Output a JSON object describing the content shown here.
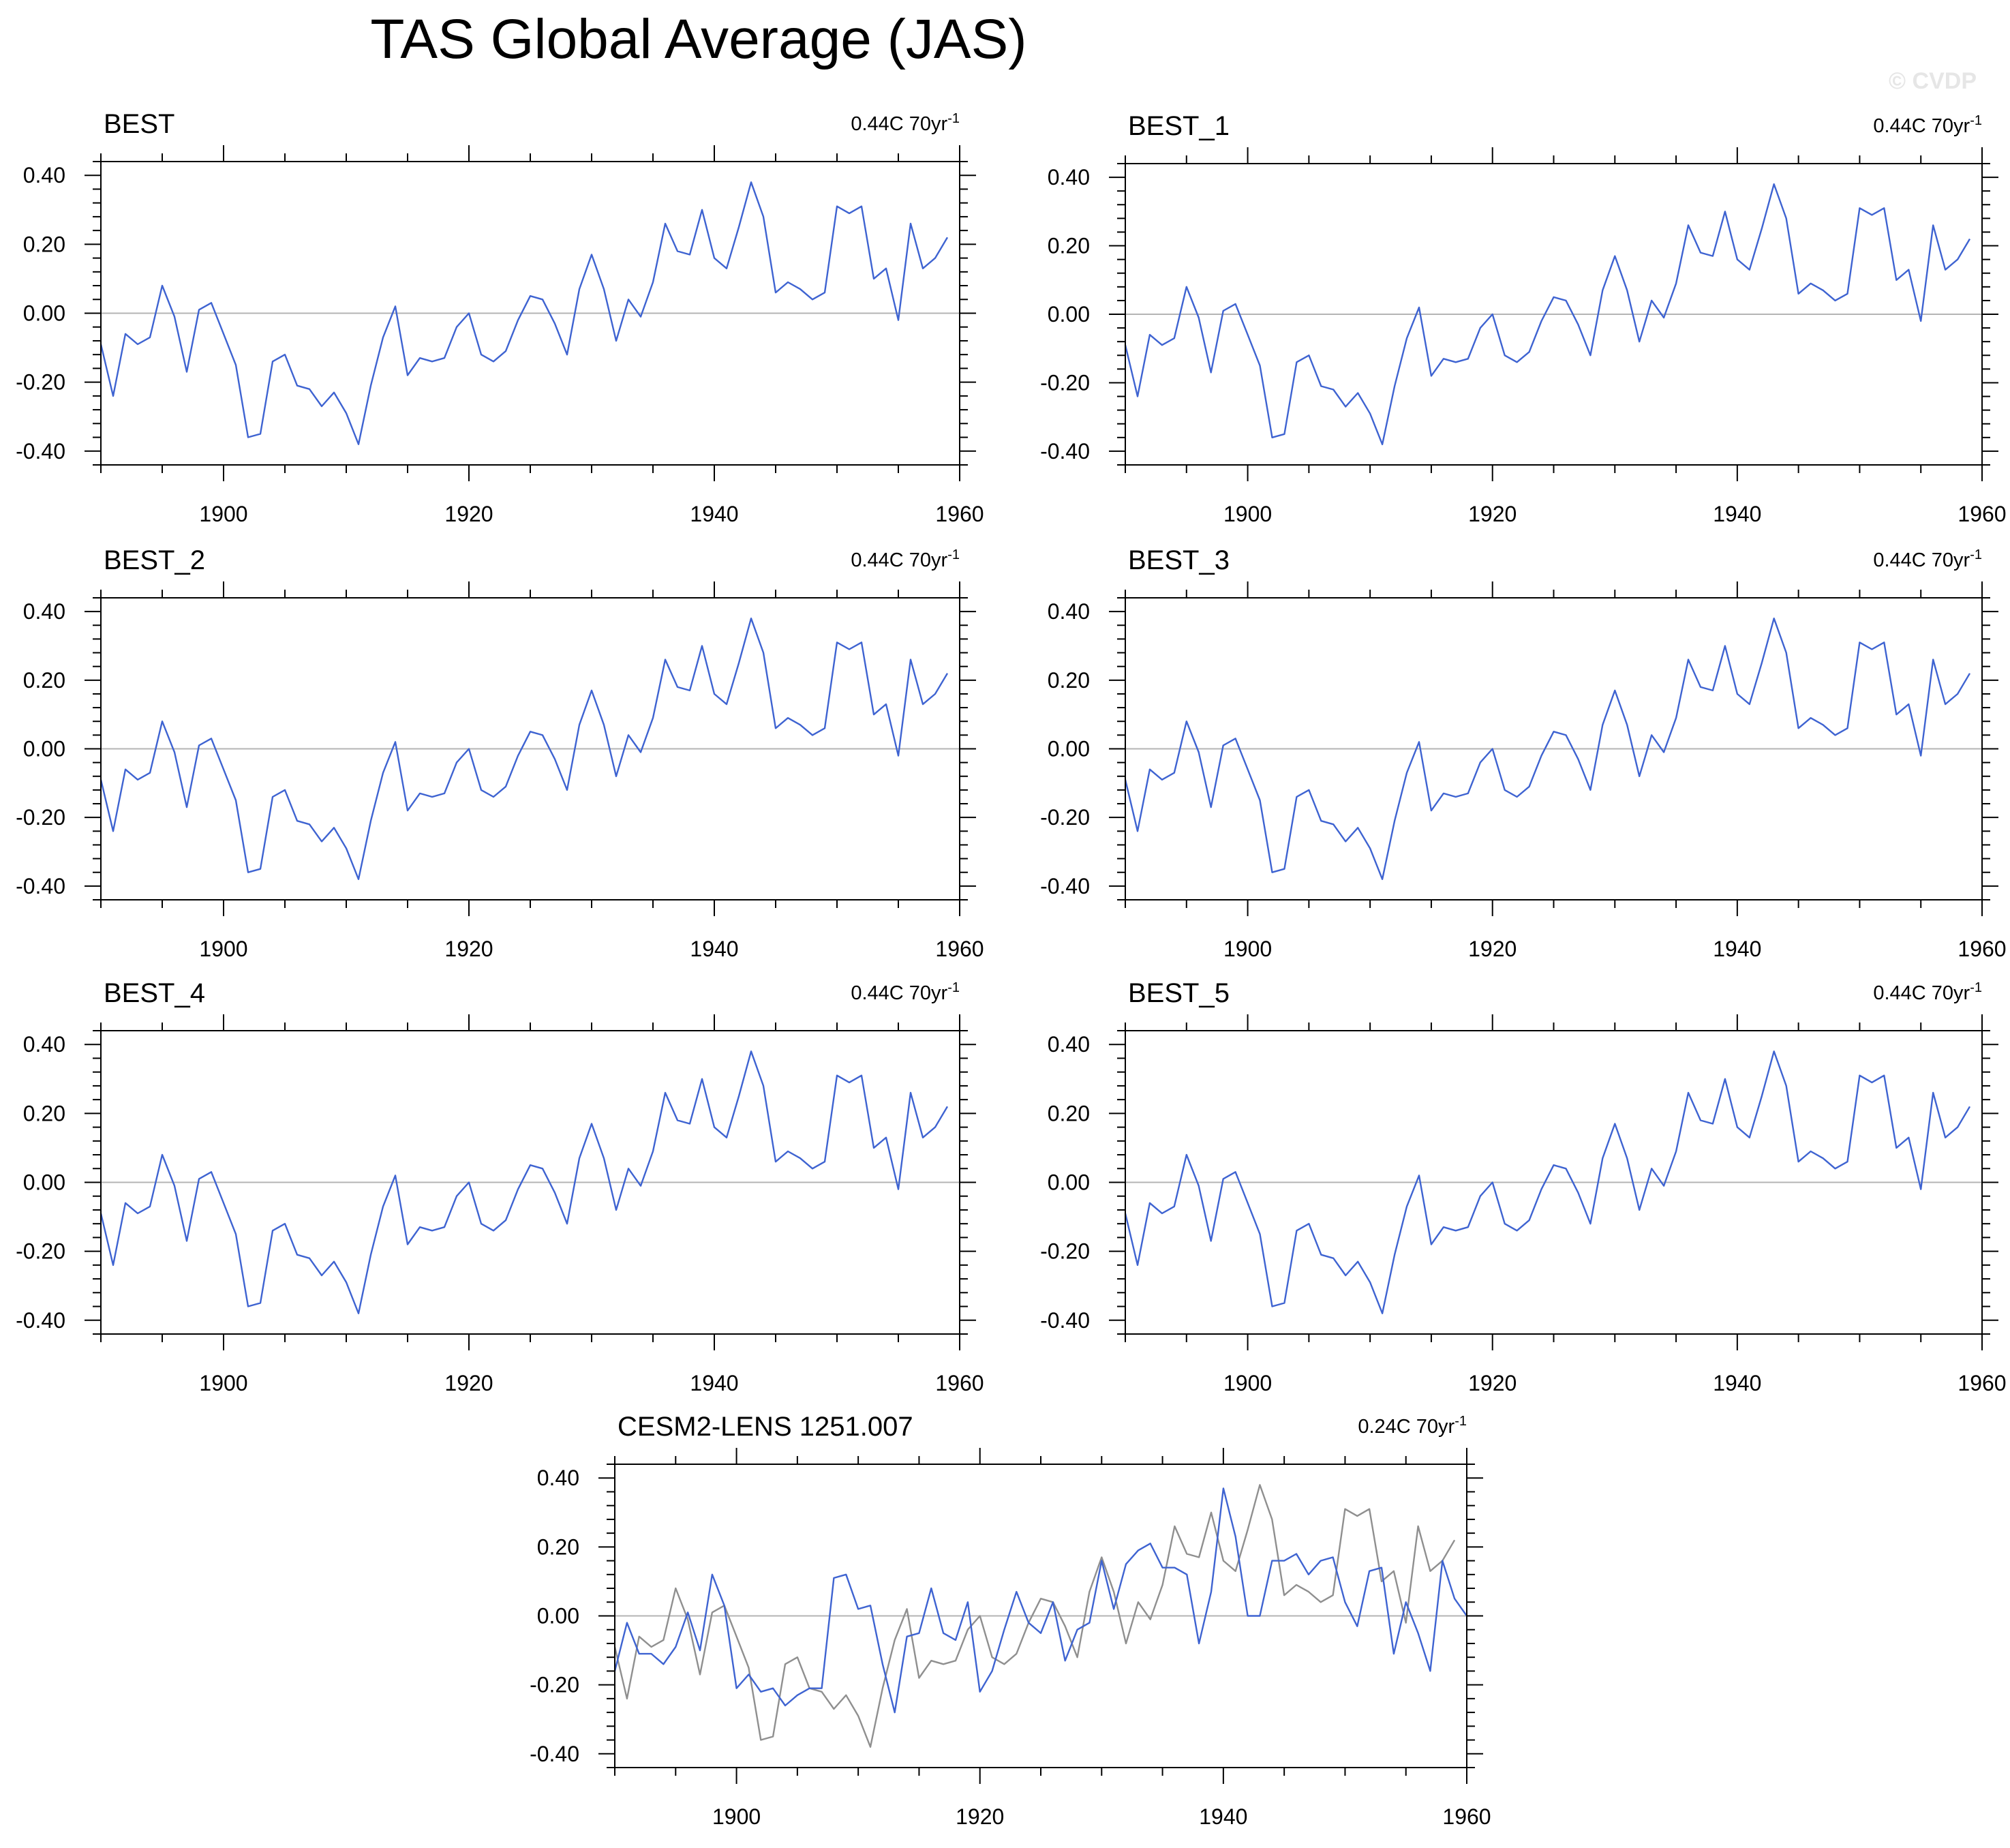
{
  "title": "TAS Global Average (JAS)",
  "watermark": "© CVDP",
  "axes": {
    "xlim": [
      1890,
      1960
    ],
    "ylim": [
      -0.44,
      0.44
    ],
    "xticks": [
      1900,
      1920,
      1940,
      1960
    ],
    "xtick_labels": [
      "1900",
      "1920",
      "1940",
      "1960"
    ],
    "yticks": [
      0.4,
      0.2,
      0.0,
      -0.2,
      -0.4
    ],
    "ytick_labels": [
      "0.40",
      "0.20",
      "0.00",
      "-0.20",
      "-0.40"
    ],
    "zero_line": true
  },
  "colors": {
    "obs": "#3e63d1",
    "model": "#3e63d1",
    "obs_overlay": "#8f8f8f",
    "zero_line": "#b4b4b4"
  },
  "chart_data": [
    {
      "type": "line",
      "title": "BEST",
      "trend_value": "0.44C 70yr",
      "trend_exp": "-1",
      "series": [
        {
          "values": [
            -0.09,
            -0.24,
            -0.06,
            -0.09,
            -0.07,
            0.08,
            -0.01,
            -0.17,
            0.01,
            0.03,
            -0.06,
            -0.15,
            -0.36,
            -0.35,
            -0.14,
            -0.12,
            -0.21,
            -0.22,
            -0.27,
            -0.23,
            -0.29,
            -0.38,
            -0.21,
            -0.07,
            0.02,
            -0.18,
            -0.13,
            -0.14,
            -0.13,
            -0.04,
            0.0,
            -0.12,
            -0.14,
            -0.11,
            -0.02,
            0.05,
            0.04,
            -0.03,
            -0.12,
            0.07,
            0.17,
            0.07,
            -0.08,
            0.04,
            -0.01,
            0.09,
            0.26,
            0.18,
            0.17,
            0.3,
            0.16,
            0.13,
            0.25,
            0.38,
            0.28,
            0.06,
            0.09,
            0.07,
            0.04,
            0.06,
            0.31,
            0.29,
            0.31,
            0.1,
            0.13,
            -0.02,
            0.26,
            0.13,
            0.16,
            0.22
          ]
        }
      ]
    },
    {
      "type": "line",
      "title": "BEST_1",
      "trend_value": "0.44C 70yr",
      "trend_exp": "-1",
      "series": [
        {
          "values": [
            -0.09,
            -0.24,
            -0.06,
            -0.09,
            -0.07,
            0.08,
            -0.01,
            -0.17,
            0.01,
            0.03,
            -0.06,
            -0.15,
            -0.36,
            -0.35,
            -0.14,
            -0.12,
            -0.21,
            -0.22,
            -0.27,
            -0.23,
            -0.29,
            -0.38,
            -0.21,
            -0.07,
            0.02,
            -0.18,
            -0.13,
            -0.14,
            -0.13,
            -0.04,
            0.0,
            -0.12,
            -0.14,
            -0.11,
            -0.02,
            0.05,
            0.04,
            -0.03,
            -0.12,
            0.07,
            0.17,
            0.07,
            -0.08,
            0.04,
            -0.01,
            0.09,
            0.26,
            0.18,
            0.17,
            0.3,
            0.16,
            0.13,
            0.25,
            0.38,
            0.28,
            0.06,
            0.09,
            0.07,
            0.04,
            0.06,
            0.31,
            0.29,
            0.31,
            0.1,
            0.13,
            -0.02,
            0.26,
            0.13,
            0.16,
            0.22
          ]
        }
      ]
    },
    {
      "type": "line",
      "title": "BEST_2",
      "trend_value": "0.44C 70yr",
      "trend_exp": "-1",
      "series": [
        {
          "values": [
            -0.09,
            -0.24,
            -0.06,
            -0.09,
            -0.07,
            0.08,
            -0.01,
            -0.17,
            0.01,
            0.03,
            -0.06,
            -0.15,
            -0.36,
            -0.35,
            -0.14,
            -0.12,
            -0.21,
            -0.22,
            -0.27,
            -0.23,
            -0.29,
            -0.38,
            -0.21,
            -0.07,
            0.02,
            -0.18,
            -0.13,
            -0.14,
            -0.13,
            -0.04,
            0.0,
            -0.12,
            -0.14,
            -0.11,
            -0.02,
            0.05,
            0.04,
            -0.03,
            -0.12,
            0.07,
            0.17,
            0.07,
            -0.08,
            0.04,
            -0.01,
            0.09,
            0.26,
            0.18,
            0.17,
            0.3,
            0.16,
            0.13,
            0.25,
            0.38,
            0.28,
            0.06,
            0.09,
            0.07,
            0.04,
            0.06,
            0.31,
            0.29,
            0.31,
            0.1,
            0.13,
            -0.02,
            0.26,
            0.13,
            0.16,
            0.22
          ]
        }
      ]
    },
    {
      "type": "line",
      "title": "BEST_3",
      "trend_value": "0.44C 70yr",
      "trend_exp": "-1",
      "series": [
        {
          "values": [
            -0.09,
            -0.24,
            -0.06,
            -0.09,
            -0.07,
            0.08,
            -0.01,
            -0.17,
            0.01,
            0.03,
            -0.06,
            -0.15,
            -0.36,
            -0.35,
            -0.14,
            -0.12,
            -0.21,
            -0.22,
            -0.27,
            -0.23,
            -0.29,
            -0.38,
            -0.21,
            -0.07,
            0.02,
            -0.18,
            -0.13,
            -0.14,
            -0.13,
            -0.04,
            0.0,
            -0.12,
            -0.14,
            -0.11,
            -0.02,
            0.05,
            0.04,
            -0.03,
            -0.12,
            0.07,
            0.17,
            0.07,
            -0.08,
            0.04,
            -0.01,
            0.09,
            0.26,
            0.18,
            0.17,
            0.3,
            0.16,
            0.13,
            0.25,
            0.38,
            0.28,
            0.06,
            0.09,
            0.07,
            0.04,
            0.06,
            0.31,
            0.29,
            0.31,
            0.1,
            0.13,
            -0.02,
            0.26,
            0.13,
            0.16,
            0.22
          ]
        }
      ]
    },
    {
      "type": "line",
      "title": "BEST_4",
      "trend_value": "0.44C 70yr",
      "trend_exp": "-1",
      "series": [
        {
          "values": [
            -0.09,
            -0.24,
            -0.06,
            -0.09,
            -0.07,
            0.08,
            -0.01,
            -0.17,
            0.01,
            0.03,
            -0.06,
            -0.15,
            -0.36,
            -0.35,
            -0.14,
            -0.12,
            -0.21,
            -0.22,
            -0.27,
            -0.23,
            -0.29,
            -0.38,
            -0.21,
            -0.07,
            0.02,
            -0.18,
            -0.13,
            -0.14,
            -0.13,
            -0.04,
            0.0,
            -0.12,
            -0.14,
            -0.11,
            -0.02,
            0.05,
            0.04,
            -0.03,
            -0.12,
            0.07,
            0.17,
            0.07,
            -0.08,
            0.04,
            -0.01,
            0.09,
            0.26,
            0.18,
            0.17,
            0.3,
            0.16,
            0.13,
            0.25,
            0.38,
            0.28,
            0.06,
            0.09,
            0.07,
            0.04,
            0.06,
            0.31,
            0.29,
            0.31,
            0.1,
            0.13,
            -0.02,
            0.26,
            0.13,
            0.16,
            0.22
          ]
        }
      ]
    },
    {
      "type": "line",
      "title": "BEST_5",
      "trend_value": "0.44C 70yr",
      "trend_exp": "-1",
      "series": [
        {
          "values": [
            -0.09,
            -0.24,
            -0.06,
            -0.09,
            -0.07,
            0.08,
            -0.01,
            -0.17,
            0.01,
            0.03,
            -0.06,
            -0.15,
            -0.36,
            -0.35,
            -0.14,
            -0.12,
            -0.21,
            -0.22,
            -0.27,
            -0.23,
            -0.29,
            -0.38,
            -0.21,
            -0.07,
            0.02,
            -0.18,
            -0.13,
            -0.14,
            -0.13,
            -0.04,
            0.0,
            -0.12,
            -0.14,
            -0.11,
            -0.02,
            0.05,
            0.04,
            -0.03,
            -0.12,
            0.07,
            0.17,
            0.07,
            -0.08,
            0.04,
            -0.01,
            0.09,
            0.26,
            0.18,
            0.17,
            0.3,
            0.16,
            0.13,
            0.25,
            0.38,
            0.28,
            0.06,
            0.09,
            0.07,
            0.04,
            0.06,
            0.31,
            0.29,
            0.31,
            0.1,
            0.13,
            -0.02,
            0.26,
            0.13,
            0.16,
            0.22
          ]
        }
      ]
    },
    {
      "type": "line",
      "title": "CESM2-LENS 1251.007",
      "trend_value": "0.24C 70yr",
      "trend_exp": "-1",
      "series": [
        {
          "color": "obs_overlay",
          "values": [
            -0.09,
            -0.24,
            -0.06,
            -0.09,
            -0.07,
            0.08,
            -0.01,
            -0.17,
            0.01,
            0.03,
            -0.06,
            -0.15,
            -0.36,
            -0.35,
            -0.14,
            -0.12,
            -0.21,
            -0.22,
            -0.27,
            -0.23,
            -0.29,
            -0.38,
            -0.21,
            -0.07,
            0.02,
            -0.18,
            -0.13,
            -0.14,
            -0.13,
            -0.04,
            0.0,
            -0.12,
            -0.14,
            -0.11,
            -0.02,
            0.05,
            0.04,
            -0.03,
            -0.12,
            0.07,
            0.17,
            0.07,
            -0.08,
            0.04,
            -0.01,
            0.09,
            0.26,
            0.18,
            0.17,
            0.3,
            0.16,
            0.13,
            0.25,
            0.38,
            0.28,
            0.06,
            0.09,
            0.07,
            0.04,
            0.06,
            0.31,
            0.29,
            0.31,
            0.1,
            0.13,
            -0.02,
            0.26,
            0.13,
            0.16,
            0.22
          ]
        },
        {
          "color": "model",
          "values": [
            -0.16,
            -0.02,
            -0.11,
            -0.11,
            -0.14,
            -0.09,
            0.01,
            -0.1,
            0.12,
            0.03,
            -0.21,
            -0.17,
            -0.22,
            -0.21,
            -0.26,
            -0.23,
            -0.21,
            -0.21,
            0.11,
            0.12,
            0.02,
            0.03,
            -0.14,
            -0.28,
            -0.06,
            -0.05,
            0.08,
            -0.05,
            -0.07,
            0.04,
            -0.22,
            -0.16,
            -0.04,
            0.07,
            -0.02,
            -0.05,
            0.04,
            -0.13,
            -0.04,
            -0.02,
            0.16,
            0.02,
            0.15,
            0.19,
            0.21,
            0.14,
            0.14,
            0.12,
            -0.08,
            0.07,
            0.37,
            0.23,
            0.0,
            0.0,
            0.16,
            0.16,
            0.18,
            0.12,
            0.16,
            0.17,
            0.04,
            -0.03,
            0.13,
            0.14,
            -0.11,
            0.04,
            -0.05,
            -0.16,
            0.16,
            0.05,
            0.0
          ]
        }
      ]
    }
  ]
}
